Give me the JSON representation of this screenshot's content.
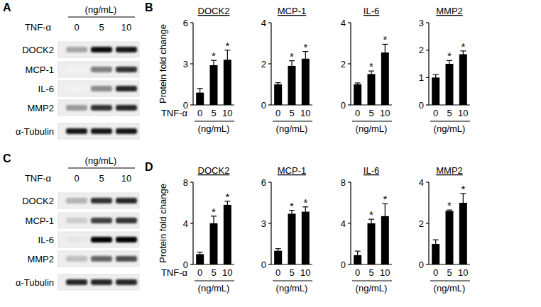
{
  "blots": [
    {
      "panel": "A",
      "unit": "(ng/mL)",
      "treatment": "TNF-α",
      "lanes": [
        "0",
        "5",
        "10"
      ],
      "rows": [
        {
          "label": "DOCK2",
          "intensity": [
            0.35,
            0.95,
            0.9
          ]
        },
        {
          "label": "MCP-1",
          "intensity": [
            0.05,
            0.5,
            0.8
          ]
        },
        {
          "label": "IL-6",
          "intensity": [
            0.05,
            0.45,
            0.85
          ]
        },
        {
          "label": "MMP2",
          "intensity": [
            0.4,
            0.8,
            0.85
          ]
        },
        {
          "label": "α-Tubulin",
          "intensity": [
            0.9,
            0.9,
            0.9
          ]
        }
      ]
    },
    {
      "panel": "C",
      "unit": "(ng/mL)",
      "treatment": "TNF-α",
      "lanes": [
        "0",
        "5",
        "10"
      ],
      "rows": [
        {
          "label": "DOCK2",
          "intensity": [
            0.3,
            0.8,
            0.85
          ]
        },
        {
          "label": "MCP-1",
          "intensity": [
            0.2,
            0.75,
            0.8
          ]
        },
        {
          "label": "IL-6",
          "intensity": [
            0.1,
            1,
            1
          ]
        },
        {
          "label": "MMP2",
          "intensity": [
            0.25,
            0.6,
            0.7
          ]
        },
        {
          "label": "α-Tubulin",
          "intensity": [
            0.85,
            0.85,
            0.85
          ]
        }
      ]
    }
  ],
  "chart_panels": [
    "B",
    "D"
  ],
  "chart_data": [
    {
      "type": "bar",
      "title": "DOCK2",
      "y_label": "Protein fold change",
      "x_label": "TNF-α",
      "x_unit": "(ng/mL)",
      "categories": [
        "0",
        "5",
        "10"
      ],
      "values": [
        0.9,
        2.9,
        3.3
      ],
      "errors": [
        0.3,
        0.35,
        0.7
      ],
      "annotations": [
        null,
        "*",
        "*"
      ],
      "ylim": [
        0,
        6
      ],
      "yticks": [
        0,
        3,
        6
      ],
      "color": "#000000"
    },
    {
      "type": "bar",
      "title": "MCP-1",
      "x_unit": "(ng/mL)",
      "categories": [
        "0",
        "5",
        "10"
      ],
      "values": [
        1.0,
        1.9,
        2.25
      ],
      "errors": [
        0.08,
        0.25,
        0.35
      ],
      "annotations": [
        null,
        "*",
        "*"
      ],
      "ylim": [
        0,
        4
      ],
      "yticks": [
        0,
        2,
        4
      ],
      "color": "#000000"
    },
    {
      "type": "bar",
      "title": "IL-6",
      "x_unit": "(ng/mL)",
      "categories": [
        "0",
        "5",
        "10"
      ],
      "values": [
        1.0,
        1.5,
        2.55
      ],
      "errors": [
        0.07,
        0.15,
        0.4
      ],
      "annotations": [
        null,
        "*",
        "*"
      ],
      "ylim": [
        0,
        4
      ],
      "yticks": [
        0,
        2,
        4
      ],
      "color": "#000000"
    },
    {
      "type": "bar",
      "title": "MMP2",
      "x_unit": "(ng/mL)",
      "categories": [
        "0",
        "5",
        "10"
      ],
      "values": [
        1.0,
        1.5,
        1.85
      ],
      "errors": [
        0.1,
        0.12,
        0.12
      ],
      "annotations": [
        null,
        "*",
        "*"
      ],
      "ylim": [
        0,
        3
      ],
      "yticks": [
        0,
        1,
        2,
        3
      ],
      "color": "#000000"
    },
    {
      "type": "bar",
      "title": "DOCK2",
      "y_label": "Protein fold change",
      "x_label": "TNF-α",
      "x_unit": "(ng/mL)",
      "categories": [
        "0",
        "5",
        "10"
      ],
      "values": [
        1.0,
        4.0,
        5.8
      ],
      "errors": [
        0.2,
        0.7,
        0.35
      ],
      "annotations": [
        null,
        "*",
        "*"
      ],
      "ylim": [
        0,
        8
      ],
      "yticks": [
        0,
        4,
        8
      ],
      "color": "#000000"
    },
    {
      "type": "bar",
      "title": "MCP-1",
      "x_unit": "(ng/mL)",
      "categories": [
        "0",
        "5",
        "10"
      ],
      "values": [
        1.0,
        3.7,
        3.85
      ],
      "errors": [
        0.15,
        0.25,
        0.35
      ],
      "annotations": [
        null,
        "*",
        "*"
      ],
      "ylim": [
        0,
        6
      ],
      "yticks": [
        0,
        3,
        6
      ],
      "color": "#000000"
    },
    {
      "type": "bar",
      "title": "IL-6",
      "x_unit": "(ng/mL)",
      "categories": [
        "0",
        "5",
        "10"
      ],
      "values": [
        0.9,
        4.0,
        4.7
      ],
      "errors": [
        0.4,
        0.4,
        1.2
      ],
      "annotations": [
        null,
        "*",
        "*"
      ],
      "ylim": [
        0,
        8
      ],
      "yticks": [
        0,
        4,
        8
      ],
      "color": "#000000"
    },
    {
      "type": "bar",
      "title": "MMP2",
      "x_unit": "(ng/mL)",
      "categories": [
        "0",
        "5",
        "10"
      ],
      "values": [
        1.0,
        2.6,
        3.0
      ],
      "errors": [
        0.2,
        0.05,
        0.45
      ],
      "annotations": [
        null,
        "*",
        "*"
      ],
      "ylim": [
        0,
        4
      ],
      "yticks": [
        0,
        2,
        4
      ],
      "color": "#000000"
    }
  ]
}
